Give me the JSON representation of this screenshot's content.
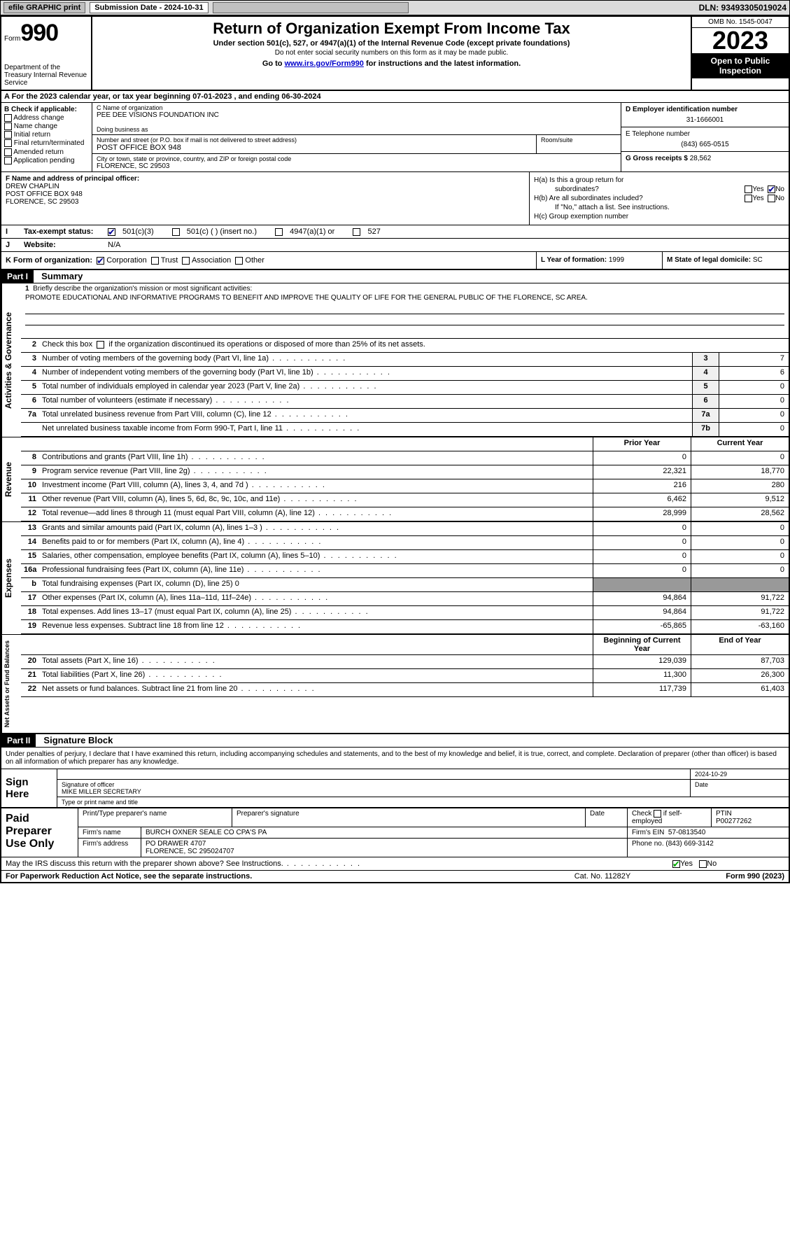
{
  "topbar": {
    "efile_label": "efile GRAPHIC print",
    "submission_label": "Submission Date - 2024-10-31",
    "dln_label": "DLN: 93493305019024"
  },
  "header": {
    "form_word": "Form",
    "form_number": "990",
    "title": "Return of Organization Exempt From Income Tax",
    "subtitle1": "Under section 501(c), 527, or 4947(a)(1) of the Internal Revenue Code (except private foundations)",
    "subtitle2": "Do not enter social security numbers on this form as it may be made public.",
    "subtitle3_pre": "Go to ",
    "subtitle3_link": "www.irs.gov/Form990",
    "subtitle3_post": " for instructions and the latest information.",
    "dept": "Department of the Treasury Internal Revenue Service",
    "omb": "OMB No. 1545-0047",
    "year": "2023",
    "public_inspection": "Open to Public Inspection"
  },
  "row_a": "A For the 2023 calendar year, or tax year beginning 07-01-2023   , and ending 06-30-2024",
  "section_b": {
    "label": "B Check if applicable:",
    "items": [
      "Address change",
      "Name change",
      "Initial return",
      "Final return/terminated",
      "Amended return",
      "Application pending"
    ]
  },
  "section_c": {
    "name_label": "C Name of organization",
    "name": "PEE DEE VISIONS FOUNDATION INC",
    "dba_label": "Doing business as",
    "street_label": "Number and street (or P.O. box if mail is not delivered to street address)",
    "street": "POST OFFICE BOX 948",
    "room_label": "Room/suite",
    "city_label": "City or town, state or province, country, and ZIP or foreign postal code",
    "city": "FLORENCE, SC  29503"
  },
  "section_de": {
    "ein_label": "D Employer identification number",
    "ein": "31-1666001",
    "phone_label": "E Telephone number",
    "phone": "(843) 665-0515",
    "gross_label": "G Gross receipts $",
    "gross": "28,562"
  },
  "section_f": {
    "label": "F  Name and address of principal officer:",
    "name": "DREW CHAPLIN",
    "addr1": "POST OFFICE BOX 948",
    "addr2": "FLORENCE, SC  29503"
  },
  "section_h": {
    "ha": "H(a)  Is this a group return for",
    "ha2": "subordinates?",
    "hb": "H(b)  Are all subordinates included?",
    "hb_note": "If \"No,\" attach a list. See instructions.",
    "hc": "H(c)  Group exemption number",
    "yes": "Yes",
    "no": "No"
  },
  "row_i": {
    "label": "Tax-exempt status:",
    "opt1": "501(c)(3)",
    "opt2": "501(c) (  ) (insert no.)",
    "opt3": "4947(a)(1) or",
    "opt4": "527"
  },
  "row_j": {
    "label": "Website:",
    "value": "N/A"
  },
  "row_k": {
    "label": "K Form of organization:",
    "opts": [
      "Corporation",
      "Trust",
      "Association",
      "Other"
    ]
  },
  "row_l": {
    "label": "L Year of formation:",
    "value": "1999"
  },
  "row_m": {
    "label": "M State of legal domicile:",
    "value": "SC"
  },
  "part1": {
    "tag": "Part I",
    "title": "Summary"
  },
  "mission": {
    "label": "Briefly describe the organization's mission or most significant activities:",
    "text": "PROMOTE EDUCATIONAL AND INFORMATIVE PROGRAMS TO BENEFIT AND IMPROVE THE QUALITY OF LIFE FOR THE GENERAL PUBLIC OF THE FLORENCE, SC AREA."
  },
  "line2": "Check this box     if the organization discontinued its operations or disposed of more than 25% of its net assets.",
  "vtabs": {
    "gov": "Activities & Governance",
    "rev": "Revenue",
    "exp": "Expenses",
    "net": "Net Assets or Fund Balances"
  },
  "gov_rows": [
    {
      "n": "3",
      "t": "Number of voting members of the governing body (Part VI, line 1a)",
      "box": "3",
      "v": "7"
    },
    {
      "n": "4",
      "t": "Number of independent voting members of the governing body (Part VI, line 1b)",
      "box": "4",
      "v": "6"
    },
    {
      "n": "5",
      "t": "Total number of individuals employed in calendar year 2023 (Part V, line 2a)",
      "box": "5",
      "v": "0"
    },
    {
      "n": "6",
      "t": "Total number of volunteers (estimate if necessary)",
      "box": "6",
      "v": "0"
    },
    {
      "n": "7a",
      "t": "Total unrelated business revenue from Part VIII, column (C), line 12",
      "box": "7a",
      "v": "0"
    },
    {
      "n": "",
      "t": "Net unrelated business taxable income from Form 990-T, Part I, line 11",
      "box": "7b",
      "v": "0"
    }
  ],
  "col_hdr": {
    "py": "Prior Year",
    "cy": "Current Year",
    "bcy": "Beginning of Current Year",
    "eoy": "End of Year"
  },
  "rev_rows": [
    {
      "n": "8",
      "t": "Contributions and grants (Part VIII, line 1h)",
      "py": "0",
      "cy": "0"
    },
    {
      "n": "9",
      "t": "Program service revenue (Part VIII, line 2g)",
      "py": "22,321",
      "cy": "18,770"
    },
    {
      "n": "10",
      "t": "Investment income (Part VIII, column (A), lines 3, 4, and 7d )",
      "py": "216",
      "cy": "280"
    },
    {
      "n": "11",
      "t": "Other revenue (Part VIII, column (A), lines 5, 6d, 8c, 9c, 10c, and 11e)",
      "py": "6,462",
      "cy": "9,512"
    },
    {
      "n": "12",
      "t": "Total revenue—add lines 8 through 11 (must equal Part VIII, column (A), line 12)",
      "py": "28,999",
      "cy": "28,562"
    }
  ],
  "exp_rows": [
    {
      "n": "13",
      "t": "Grants and similar amounts paid (Part IX, column (A), lines 1–3 )",
      "py": "0",
      "cy": "0"
    },
    {
      "n": "14",
      "t": "Benefits paid to or for members (Part IX, column (A), line 4)",
      "py": "0",
      "cy": "0"
    },
    {
      "n": "15",
      "t": "Salaries, other compensation, employee benefits (Part IX, column (A), lines 5–10)",
      "py": "0",
      "cy": "0"
    },
    {
      "n": "16a",
      "t": "Professional fundraising fees (Part IX, column (A), line 11e)",
      "py": "0",
      "cy": "0"
    },
    {
      "n": "b",
      "t": "Total fundraising expenses (Part IX, column (D), line 25) 0",
      "py": "",
      "cy": "",
      "shade": true
    },
    {
      "n": "17",
      "t": "Other expenses (Part IX, column (A), lines 11a–11d, 11f–24e)",
      "py": "94,864",
      "cy": "91,722"
    },
    {
      "n": "18",
      "t": "Total expenses. Add lines 13–17 (must equal Part IX, column (A), line 25)",
      "py": "94,864",
      "cy": "91,722"
    },
    {
      "n": "19",
      "t": "Revenue less expenses. Subtract line 18 from line 12",
      "py": "-65,865",
      "cy": "-63,160"
    }
  ],
  "net_rows": [
    {
      "n": "20",
      "t": "Total assets (Part X, line 16)",
      "py": "129,039",
      "cy": "87,703"
    },
    {
      "n": "21",
      "t": "Total liabilities (Part X, line 26)",
      "py": "11,300",
      "cy": "26,300"
    },
    {
      "n": "22",
      "t": "Net assets or fund balances. Subtract line 21 from line 20",
      "py": "117,739",
      "cy": "61,403"
    }
  ],
  "part2": {
    "tag": "Part II",
    "title": "Signature Block"
  },
  "sig_intro": "Under penalties of perjury, I declare that I have examined this return, including accompanying schedules and statements, and to the best of my knowledge and belief, it is true, correct, and complete. Declaration of preparer (other than officer) is based on all information of which preparer has any knowledge.",
  "sign": {
    "here": "Sign Here",
    "sig_date": "2024-10-29",
    "sig_label": "Signature of officer",
    "date_label": "Date",
    "name_title": "MIKE MILLER  SECRETARY",
    "type_label": "Type or print name and title"
  },
  "prep": {
    "label": "Paid Preparer Use Only",
    "name_label": "Print/Type preparer's name",
    "sig_label": "Preparer's signature",
    "date_label": "Date",
    "check_label": "Check        if self-employed",
    "ptin_label": "PTIN",
    "ptin": "P00277262",
    "firm_name_label": "Firm's name",
    "firm_name": "BURCH OXNER SEALE CO CPA'S PA",
    "firm_ein_label": "Firm's EIN",
    "firm_ein": "57-0813540",
    "firm_addr_label": "Firm's address",
    "firm_addr1": "PO DRAWER 4707",
    "firm_addr2": "FLORENCE, SC  295024707",
    "phone_label": "Phone no.",
    "phone": "(843) 669-3142"
  },
  "discuss": {
    "text": "May the IRS discuss this return with the preparer shown above? See Instructions.",
    "yes": "Yes",
    "no": "No"
  },
  "footer": {
    "left": "For Paperwork Reduction Act Notice, see the separate instructions.",
    "mid": "Cat. No. 11282Y",
    "right": "Form 990 (2023)"
  }
}
